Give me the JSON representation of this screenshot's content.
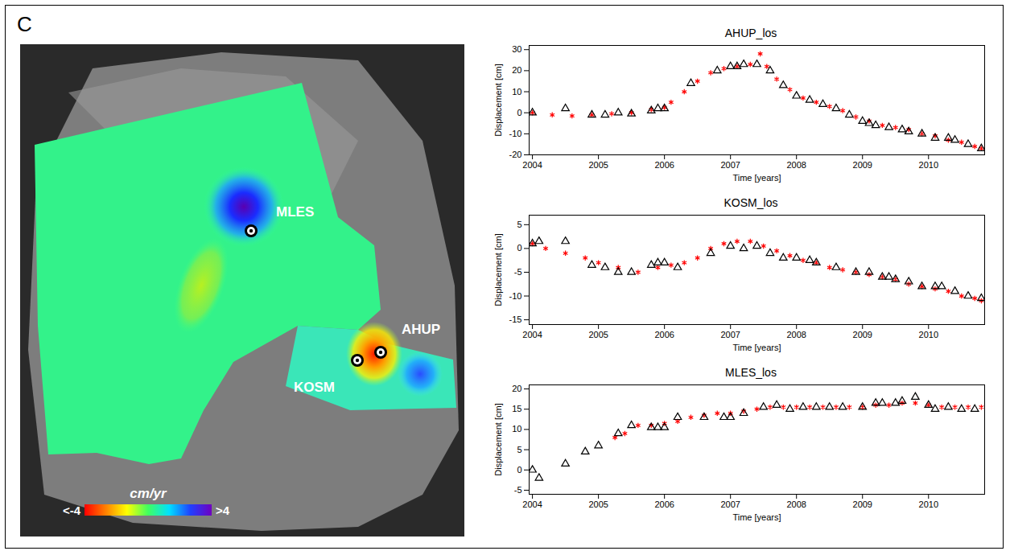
{
  "panel_label": "C",
  "map": {
    "type": "map",
    "labels": [
      "MLES",
      "KOSM",
      "AHUP"
    ],
    "colorbar": {
      "title": "cm/yr",
      "range": [
        -4,
        4
      ],
      "ticks": [
        {
          "value": -4,
          "label": "<-4"
        },
        {
          "value": 4,
          "label": ">4"
        }
      ]
    }
  },
  "chart_data": [
    {
      "type": "scatter",
      "title": "AHUP_los",
      "x_label": "Time [years]",
      "y_label": "Displacement [cm]",
      "xlim": [
        2003.95,
        2010.85
      ],
      "xticks": [
        2004,
        2005,
        2006,
        2007,
        2008,
        2009,
        2010
      ],
      "ylim": [
        -20,
        32
      ],
      "yticks": [
        -20,
        -10,
        0,
        10,
        20,
        30
      ],
      "series": [
        {
          "color": "#ff0000",
          "marker": "asterisk",
          "x": [
            2004.0,
            2004.3,
            2004.6,
            2004.9,
            2005.2,
            2005.5,
            2005.8,
            2006.0,
            2006.1,
            2006.3,
            2006.5,
            2006.7,
            2006.9,
            2007.1,
            2007.3,
            2007.45,
            2007.55,
            2007.7,
            2007.9,
            2008.1,
            2008.3,
            2008.5,
            2008.7,
            2008.9,
            2009.1,
            2009.3,
            2009.5,
            2009.7,
            2009.9,
            2010.1,
            2010.3,
            2010.5,
            2010.7,
            2010.8
          ],
          "values": [
            0,
            -1,
            -1.5,
            -1,
            -0.5,
            0,
            1.5,
            2.5,
            5,
            10,
            15,
            19,
            21,
            22,
            23,
            28,
            22,
            16,
            11,
            7,
            5,
            3,
            1,
            -2,
            -4,
            -6,
            -7,
            -8,
            -10,
            -11,
            -13,
            -14,
            -16,
            -17
          ]
        },
        {
          "color": "#000000",
          "marker": "triangle",
          "x": [
            2004.0,
            2004.5,
            2004.9,
            2005.1,
            2005.3,
            2005.5,
            2005.8,
            2005.9,
            2006.0,
            2006.4,
            2006.8,
            2007.0,
            2007.1,
            2007.2,
            2007.4,
            2007.6,
            2007.8,
            2008.0,
            2008.2,
            2008.4,
            2008.6,
            2008.8,
            2009.0,
            2009.1,
            2009.2,
            2009.4,
            2009.6,
            2009.7,
            2009.9,
            2010.1,
            2010.3,
            2010.4,
            2010.6,
            2010.8
          ],
          "values": [
            0,
            2,
            -1,
            -1,
            0,
            -0.5,
            1,
            2,
            2,
            14,
            20,
            22,
            22,
            23,
            23,
            20,
            13,
            8,
            6,
            4,
            2,
            -1,
            -4,
            -5,
            -6,
            -7,
            -8,
            -9,
            -10,
            -12,
            -12,
            -13,
            -15,
            -17
          ]
        }
      ]
    },
    {
      "type": "scatter",
      "title": "KOSM_los",
      "x_label": "Time [years]",
      "y_label": "Displacement [cm]",
      "xlim": [
        2003.95,
        2010.85
      ],
      "xticks": [
        2004,
        2005,
        2006,
        2007,
        2008,
        2009,
        2010
      ],
      "ylim": [
        -16,
        7
      ],
      "yticks": [
        -15,
        -10,
        -5,
        0,
        5
      ],
      "series": [
        {
          "color": "#ff0000",
          "marker": "asterisk",
          "x": [
            2004.0,
            2004.2,
            2004.5,
            2004.8,
            2005.0,
            2005.3,
            2005.6,
            2005.9,
            2006.1,
            2006.3,
            2006.5,
            2006.7,
            2006.9,
            2007.1,
            2007.3,
            2007.5,
            2007.7,
            2007.9,
            2008.1,
            2008.3,
            2008.5,
            2008.7,
            2008.9,
            2009.1,
            2009.3,
            2009.5,
            2009.7,
            2009.9,
            2010.1,
            2010.3,
            2010.5,
            2010.7,
            2010.8
          ],
          "values": [
            1,
            0,
            -1,
            -2,
            -3,
            -4,
            -5,
            -4,
            -3.5,
            -3,
            -2,
            0,
            1,
            1.5,
            1.5,
            0.5,
            -0.5,
            -1.5,
            -2.5,
            -3,
            -4,
            -4.5,
            -5,
            -5.5,
            -6,
            -6.5,
            -7.5,
            -8,
            -8.5,
            -9,
            -10,
            -10.5,
            -11
          ]
        },
        {
          "color": "#000000",
          "marker": "triangle",
          "x": [
            2004.0,
            2004.1,
            2004.5,
            2004.9,
            2005.1,
            2005.3,
            2005.5,
            2005.8,
            2005.9,
            2006.0,
            2006.2,
            2006.7,
            2007.0,
            2007.2,
            2007.4,
            2007.6,
            2007.8,
            2008.0,
            2008.2,
            2008.3,
            2008.6,
            2008.9,
            2009.1,
            2009.3,
            2009.4,
            2009.5,
            2009.7,
            2009.9,
            2010.1,
            2010.2,
            2010.4,
            2010.6,
            2010.8
          ],
          "values": [
            1,
            1.5,
            1.5,
            -3.5,
            -4,
            -5,
            -5,
            -3.5,
            -3,
            -3,
            -4,
            -1,
            0.5,
            0,
            0.5,
            -1,
            -2,
            -2,
            -2.5,
            -3,
            -4,
            -5,
            -5,
            -6,
            -6,
            -6.5,
            -7,
            -8,
            -8,
            -8,
            -9,
            -10,
            -10.5
          ]
        }
      ]
    },
    {
      "type": "scatter",
      "title": "MLES_los",
      "x_label": "Time [years]",
      "y_label": "Displacement [cm]",
      "xlim": [
        2003.95,
        2010.85
      ],
      "xticks": [
        2004,
        2005,
        2006,
        2007,
        2008,
        2009,
        2010
      ],
      "ylim": [
        -6,
        21
      ],
      "yticks": [
        -5,
        0,
        5,
        10,
        15,
        20
      ],
      "series": [
        {
          "color": "#ff0000",
          "marker": "asterisk",
          "x": [
            2005.25,
            2005.4,
            2005.6,
            2005.8,
            2006.0,
            2006.2,
            2006.4,
            2006.6,
            2006.8,
            2007.0,
            2007.2,
            2007.4,
            2007.6,
            2007.8,
            2008.0,
            2008.2,
            2008.4,
            2008.6,
            2008.8,
            2009.0,
            2009.2,
            2009.4,
            2009.6,
            2009.8,
            2010.0,
            2010.2,
            2010.4,
            2010.6,
            2010.8
          ],
          "values": [
            8,
            9,
            11,
            11,
            11.5,
            12,
            13,
            13.5,
            14,
            14,
            14.5,
            15,
            15.5,
            15.5,
            15.5,
            15.5,
            15.5,
            15.5,
            15.5,
            15.5,
            16,
            16,
            16.5,
            16.5,
            16,
            15.5,
            15.5,
            15.5,
            15.5
          ]
        },
        {
          "color": "#000000",
          "marker": "triangle",
          "x": [
            2004.0,
            2004.1,
            2004.5,
            2004.8,
            2005.0,
            2005.3,
            2005.5,
            2005.8,
            2005.9,
            2006.0,
            2006.2,
            2006.6,
            2006.9,
            2007.0,
            2007.2,
            2007.5,
            2007.7,
            2007.9,
            2008.1,
            2008.3,
            2008.5,
            2008.7,
            2009.0,
            2009.2,
            2009.3,
            2009.5,
            2009.6,
            2009.8,
            2010.0,
            2010.1,
            2010.3,
            2010.5,
            2010.7
          ],
          "values": [
            0,
            -2,
            1.5,
            4.5,
            6,
            9,
            11,
            10.5,
            10.5,
            10.5,
            13,
            13,
            13,
            13,
            14,
            15.5,
            16,
            15,
            15.5,
            15.5,
            15.5,
            15.5,
            15.5,
            16.5,
            16.5,
            16.5,
            17,
            18,
            16,
            15,
            15.5,
            15,
            15
          ]
        }
      ]
    }
  ]
}
